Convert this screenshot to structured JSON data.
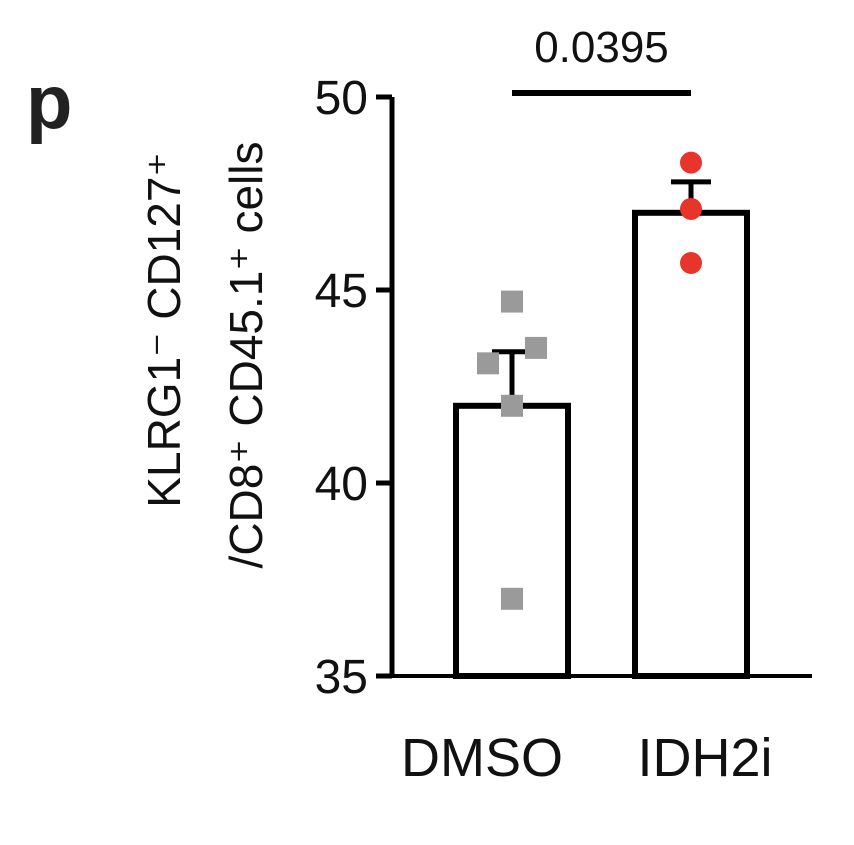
{
  "panel_label": "p",
  "chart_data": {
    "type": "bar",
    "categories": [
      "DMSO",
      "IDH2i"
    ],
    "values": [
      42.0,
      47.0
    ],
    "errors": [
      1.4,
      0.8
    ],
    "points": [
      [
        44.7,
        43.5,
        43.1,
        42.0,
        37.0
      ],
      [
        48.3,
        47.1,
        45.7
      ]
    ],
    "colors": {
      "points": [
        "#9a9a9a",
        "#e8352b"
      ],
      "bar_fill": "#ffffff",
      "bar_stroke": "#000000"
    },
    "ylabel_line1": "KLRG1⁻ CD127⁺",
    "ylabel_line2": "/CD8⁺ CD45.1⁺ cells",
    "xlabel": "",
    "title": "",
    "ylim": [
      35,
      50
    ],
    "yticks": [
      35,
      40,
      45,
      50
    ],
    "grid": false,
    "significance": {
      "pairs": [
        0,
        1
      ],
      "p_value": "0.0395"
    }
  }
}
